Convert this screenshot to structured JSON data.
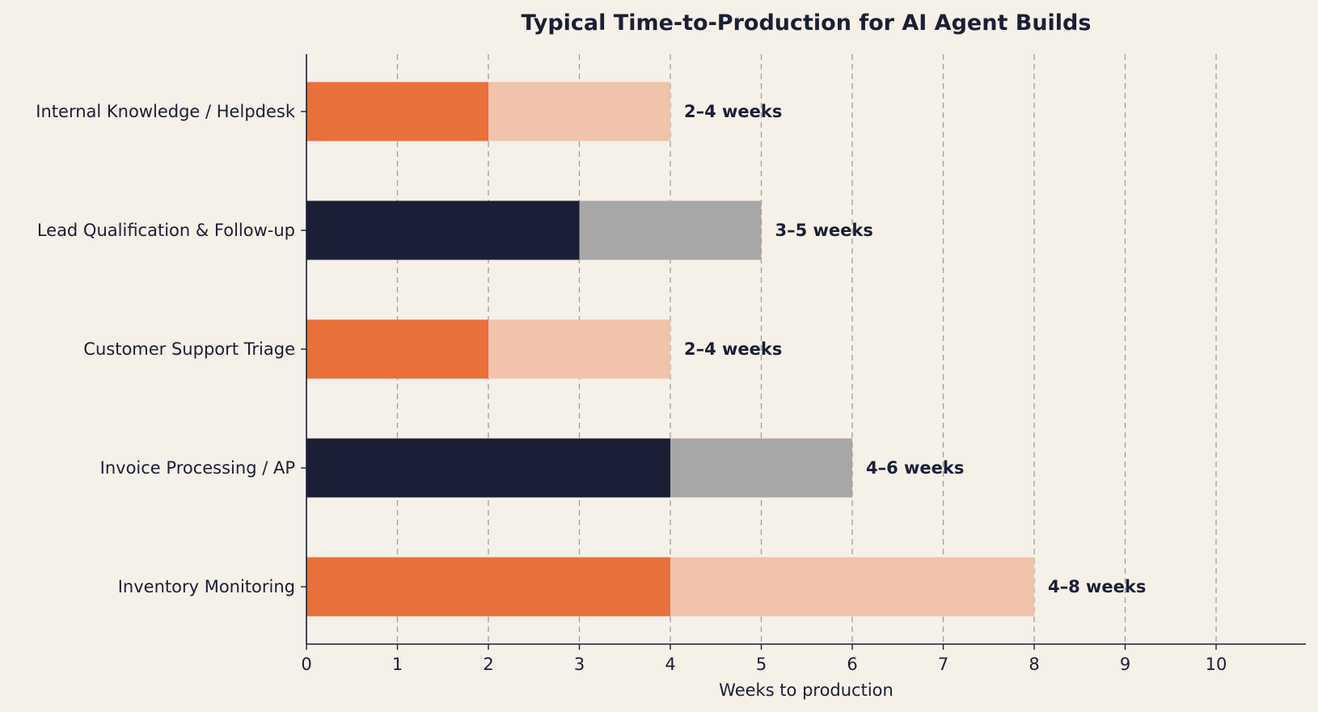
{
  "chart_data": {
    "type": "bar",
    "orientation": "horizontal",
    "title": "Typical Time-to-Production for AI Agent Builds",
    "xlabel": "Weeks to production",
    "ylabel": "",
    "xlim": [
      0,
      11
    ],
    "xticks": [
      "0",
      "1",
      "2",
      "3",
      "4",
      "5",
      "6",
      "7",
      "8",
      "9",
      "10"
    ],
    "grid": "vertical dashed",
    "categories": [
      "Internal Knowledge / Helpdesk",
      "Lead Qualification & Follow-up",
      "Customer Support Triage",
      "Invoice Processing / AP",
      "Inventory Monitoring"
    ],
    "min_weeks": [
      2,
      3,
      2,
      4,
      4
    ],
    "max_weeks": [
      4,
      5,
      4,
      6,
      8
    ],
    "labels": [
      "2–4 weeks",
      "3–5 weeks",
      "2–4 weeks",
      "4–6 weeks",
      "4–8 weeks"
    ],
    "colors": {
      "orange": "#e8703a",
      "orange_light": "#f0c3aa",
      "navy": "#1b1f35",
      "gray": "#a7a7a8"
    }
  }
}
